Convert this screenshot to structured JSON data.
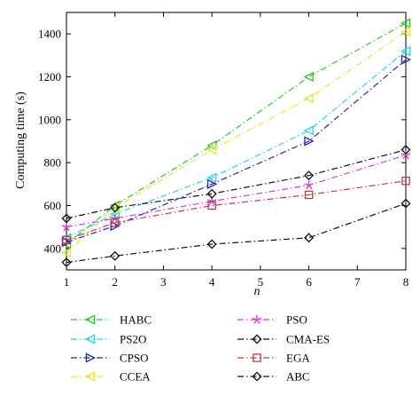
{
  "chart_data": {
    "type": "line",
    "xlabel": "n",
    "ylabel": "Computing time (s)",
    "x": [
      1,
      2,
      4,
      6,
      8
    ],
    "xlim": [
      1,
      8
    ],
    "ylim": [
      300,
      1500
    ],
    "xticks": [
      "1",
      "2",
      "3",
      "4",
      "5",
      "6",
      "7",
      "8"
    ],
    "yticks": [
      "400",
      "600",
      "800",
      "1000",
      "1200",
      "1400"
    ],
    "grid": false,
    "legend_position": "below",
    "series": [
      {
        "name": "HABC",
        "color": "#2fc42f",
        "dash": "dashdot",
        "marker": "triangle-left",
        "values": [
          420,
          600,
          880,
          1200,
          1450
        ]
      },
      {
        "name": "PS2O",
        "color": "#25d5e0",
        "dash": "dashdot",
        "marker": "triangle-left",
        "values": [
          450,
          560,
          730,
          950,
          1320
        ]
      },
      {
        "name": "CPSO",
        "color": "#2323b8",
        "dash": "dashdot",
        "marker": "triangle-right",
        "values": [
          430,
          505,
          700,
          900,
          1280
        ]
      },
      {
        "name": "CCEA",
        "color": "#e6e62a",
        "dash": "dashdot",
        "marker": "triangle-left",
        "values": [
          380,
          590,
          860,
          1100,
          1410
        ]
      },
      {
        "name": "PSO",
        "color": "#d43fcf",
        "dash": "dashdot",
        "marker": "star",
        "values": [
          500,
          540,
          620,
          695,
          835
        ]
      },
      {
        "name": "CMA-ES",
        "color": "#111111",
        "dash": "dashdot",
        "marker": "diamond",
        "values": [
          540,
          590,
          655,
          740,
          860
        ]
      },
      {
        "name": "EGA",
        "color": "#c8373d",
        "dash": "dashdot",
        "marker": "square",
        "values": [
          440,
          520,
          600,
          650,
          715
        ]
      },
      {
        "name": "ABC",
        "color": "#111111",
        "dash": "dashdot",
        "marker": "diamond",
        "values": [
          335,
          365,
          420,
          450,
          610
        ]
      }
    ]
  }
}
